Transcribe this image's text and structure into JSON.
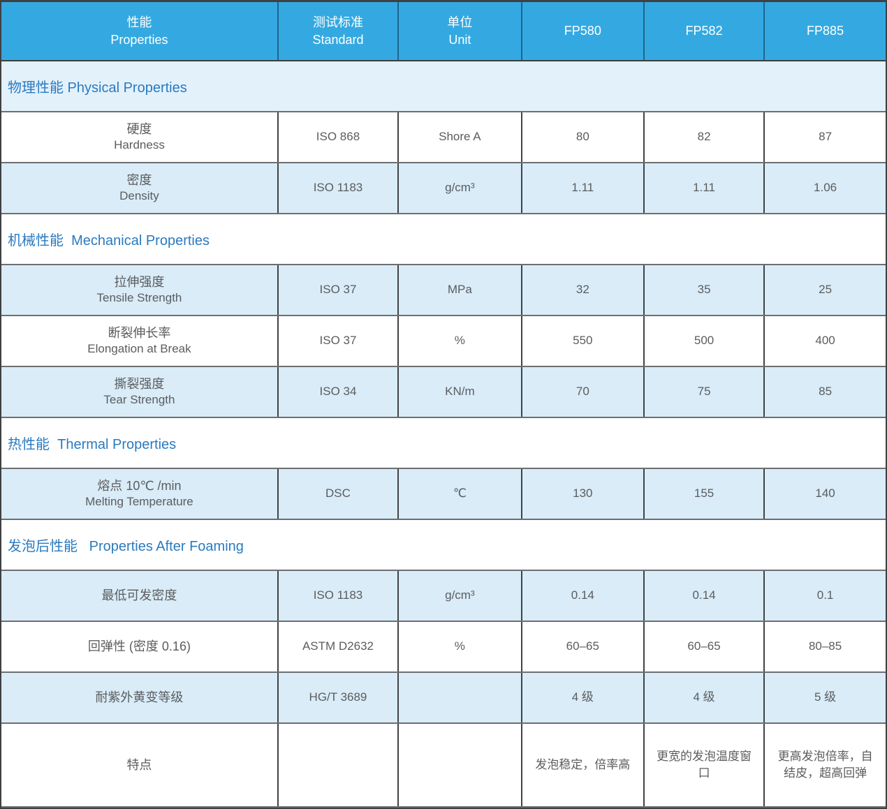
{
  "colors": {
    "header_bg": "#34a9e1",
    "header_text": "#ffffff",
    "section_title_text": "#2a7abf",
    "stripe_row_bg": "#d9ecf8",
    "section_row_bg": "#e3f1fb",
    "cell_text": "#5b5c5e",
    "border_dark": "#3f4042",
    "border_gray": "#6d6e71"
  },
  "header": {
    "columns": [
      {
        "cn": "性能",
        "en": "Properties"
      },
      {
        "cn": "测试标准",
        "en": "Standard"
      },
      {
        "cn": "单位",
        "en": "Unit"
      },
      {
        "label": "FP580"
      },
      {
        "label": "FP582"
      },
      {
        "label": "FP885"
      }
    ]
  },
  "rows": [
    {
      "type": "section",
      "title": "物理性能 Physical Properties"
    },
    {
      "type": "data",
      "cn": "硬度",
      "en": "Hardness",
      "standard": "ISO 868",
      "unit": "Shore A",
      "fp580": "80",
      "fp582": "82",
      "fp885": "87"
    },
    {
      "type": "data",
      "cn": "密度",
      "en": "Density",
      "standard": "ISO 1183",
      "unit": "g/cm³",
      "fp580": "1.11",
      "fp582": "1.11",
      "fp885": "1.06"
    },
    {
      "type": "section",
      "title": "机械性能  Mechanical Properties"
    },
    {
      "type": "data",
      "cn": "拉伸强度",
      "en": "Tensile Strength",
      "standard": "ISO 37",
      "unit": "MPa",
      "fp580": "32",
      "fp582": "35",
      "fp885": "25"
    },
    {
      "type": "data",
      "cn": "断裂伸长率",
      "en": "Elongation at Break",
      "standard": "ISO 37",
      "unit": "%",
      "fp580": "550",
      "fp582": "500",
      "fp885": "400"
    },
    {
      "type": "data",
      "cn": "撕裂强度",
      "en": "Tear Strength",
      "standard": "ISO 34",
      "unit": "KN/m",
      "fp580": "70",
      "fp582": "75",
      "fp885": "85"
    },
    {
      "type": "section",
      "title": "热性能  Thermal Properties"
    },
    {
      "type": "data",
      "cn": "熔点 10℃ /min",
      "en": "Melting Temperature",
      "standard": "DSC",
      "unit": "℃",
      "fp580": "130",
      "fp582": "155",
      "fp885": "140"
    },
    {
      "type": "section",
      "title": "发泡后性能   Properties After Foaming"
    },
    {
      "type": "data",
      "cn": "最低可发密度",
      "en": "",
      "standard": "ISO 1183",
      "unit": "g/cm³",
      "fp580": "0.14",
      "fp582": "0.14",
      "fp885": "0.1"
    },
    {
      "type": "data",
      "cn": "回弹性 (密度 0.16)",
      "en": "",
      "standard": "ASTM D2632",
      "unit": "%",
      "fp580": "60–65",
      "fp582": "60–65",
      "fp885": "80–85"
    },
    {
      "type": "data",
      "cn": "耐紫外黄变等级",
      "en": "",
      "standard": "HG/T 3689",
      "unit": "",
      "fp580": "4 级",
      "fp582": "4 级",
      "fp885": "5 级"
    },
    {
      "type": "data",
      "cn": "特点",
      "en": "",
      "standard": "",
      "unit": "",
      "fp580": "发泡稳定，倍率高",
      "fp582": "更宽的发泡温度窗口",
      "fp885": "更高发泡倍率，自结皮，超高回弹"
    }
  ]
}
